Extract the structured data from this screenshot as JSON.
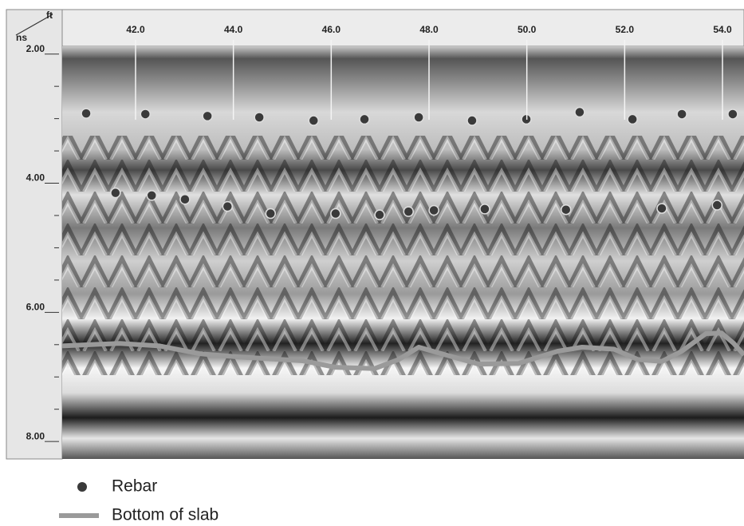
{
  "chart_data": {
    "type": "scatter",
    "x_label": "ft",
    "y_label": "ns",
    "xlim": [
      40.5,
      54.44
    ],
    "xticks": [
      {
        "value": 42,
        "label": "42.0"
      },
      {
        "value": 44,
        "label": "44.0"
      },
      {
        "value": 46,
        "label": "46.0"
      },
      {
        "value": 48,
        "label": "48.0"
      },
      {
        "value": 50,
        "label": "50.0"
      },
      {
        "value": 52,
        "label": "52.0"
      },
      {
        "value": 54,
        "label": "54.0"
      }
    ],
    "ylim": [
      1.88,
      8.27
    ],
    "y_inverted": true,
    "yticks": [
      {
        "value": 2,
        "label": "2.00"
      },
      {
        "value": 4,
        "label": "4.00"
      },
      {
        "value": 6,
        "label": "6.00"
      },
      {
        "value": 8,
        "label": "8.00"
      }
    ],
    "yminorticks": [
      2.5,
      3,
      3.5,
      4.5,
      5,
      5.5,
      6.5,
      7,
      7.5
    ],
    "legend": "bottom-left",
    "series": [
      {
        "name": "Rebar",
        "type": "scatter",
        "color": "#3a3a3a",
        "x": [
          40.99,
          42.2,
          43.47,
          44.53,
          45.64,
          46.68,
          47.79,
          48.88,
          49.99,
          51.08,
          52.16,
          53.17,
          54.21,
          41.59,
          42.33,
          43.01,
          43.88,
          44.76,
          46.09,
          46.99,
          47.58,
          48.1,
          49.14,
          50.8,
          52.76,
          53.89
        ],
        "values": [
          2.92,
          2.93,
          2.96,
          2.98,
          3.03,
          3.01,
          2.98,
          3.03,
          3.01,
          2.9,
          3.01,
          2.93,
          2.93,
          4.15,
          4.19,
          4.25,
          4.36,
          4.47,
          4.47,
          4.49,
          4.44,
          4.42,
          4.4,
          4.41,
          4.39,
          4.34
        ]
      },
      {
        "name": "Bottom of slab",
        "type": "line",
        "color": "#9a9a9a",
        "x": [
          40.5,
          41.67,
          42.49,
          43.3,
          44.12,
          45.42,
          46.08,
          46.89,
          47.38,
          47.79,
          48.2,
          49.01,
          49.83,
          50.64,
          51.13,
          51.78,
          52.27,
          52.76,
          53.17,
          53.66,
          53.98,
          54.23,
          54.44
        ],
        "values": [
          6.52,
          6.48,
          6.52,
          6.64,
          6.69,
          6.75,
          6.85,
          6.87,
          6.73,
          6.54,
          6.63,
          6.8,
          6.79,
          6.6,
          6.54,
          6.57,
          6.73,
          6.76,
          6.6,
          6.33,
          6.32,
          6.48,
          6.66
        ]
      }
    ]
  }
}
